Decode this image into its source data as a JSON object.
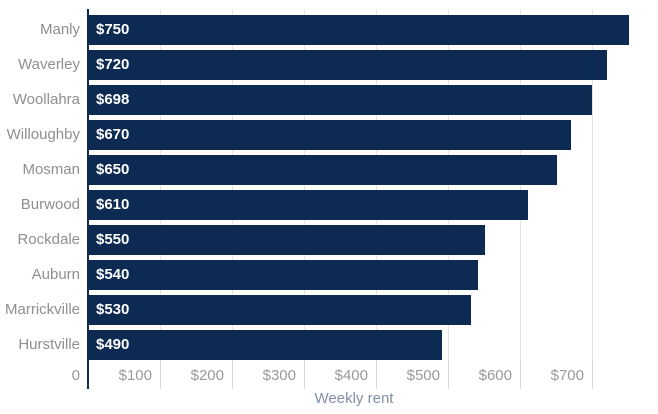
{
  "chart_data": {
    "type": "bar",
    "orientation": "horizontal",
    "title": "",
    "xlabel": "Weekly rent",
    "ylabel": "",
    "categories": [
      "Manly",
      "Waverley",
      "Woollahra",
      "Willoughby",
      "Mosman",
      "Burwood",
      "Rockdale",
      "Auburn",
      "Marrickville",
      "Hurstville"
    ],
    "values": [
      750,
      720,
      698,
      670,
      650,
      610,
      550,
      540,
      530,
      490
    ],
    "value_labels": [
      "$750",
      "$720",
      "$698",
      "$670",
      "$650",
      "$610",
      "$550",
      "$540",
      "$530",
      "$490"
    ],
    "x_ticks": [
      0,
      100,
      200,
      300,
      400,
      500,
      600,
      700
    ],
    "x_tick_labels": [
      "0",
      "$100",
      "$200",
      "$300",
      "$400",
      "$500",
      "$600",
      "$700"
    ],
    "xlim": [
      0,
      792
    ],
    "grid": "vertical",
    "legend": "none",
    "colors": {
      "bar": "#0c2a52",
      "bar_value_text": "#ffffff",
      "category_text": "#8f8f8f",
      "tick_text": "#9a9a9a",
      "axis_label_text": "#7f90a4",
      "gridline": "#e4e4e4",
      "tickline": "#d9d9d9",
      "axis_line": "#0c2a52",
      "background": "#ffffff"
    }
  }
}
